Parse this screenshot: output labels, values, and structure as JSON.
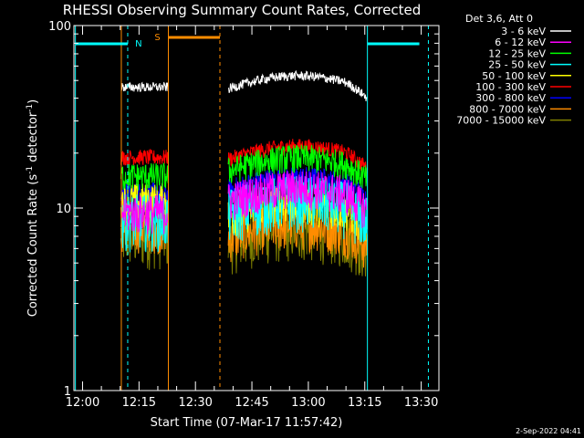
{
  "chart_data": {
    "type": "line",
    "title": "RHESSI Observing Summary Count Rates, Corrected",
    "xlabel": "Start Time (07-Mar-17 11:57:42)",
    "ylabel": "Corrected Count Rate (s",
    "ylabel_sup": "-1",
    "ylabel_tail": " detector",
    "ylabel_close": ")",
    "yscale": "log",
    "ylim": [
      1,
      100
    ],
    "y_ticks": [
      {
        "value": 1,
        "label": "1"
      },
      {
        "value": 10,
        "label": "10"
      },
      {
        "value": 100,
        "label": "100"
      }
    ],
    "xlim_minutes_after_start": [
      0,
      97
    ],
    "x_ticks": [
      {
        "minute": 2.3,
        "label": "12:00"
      },
      {
        "minute": 17.3,
        "label": "12:15"
      },
      {
        "minute": 32.3,
        "label": "12:30"
      },
      {
        "minute": 47.3,
        "label": "12:45"
      },
      {
        "minute": 62.3,
        "label": "13:00"
      },
      {
        "minute": 77.3,
        "label": "13:15"
      },
      {
        "minute": 92.3,
        "label": "13:30"
      }
    ],
    "legend_header": "Det 3,6, Att 0",
    "legend_position": "top-right outside",
    "segments": [
      [
        12.5,
        25.0
      ],
      [
        41.0,
        78.0
      ]
    ],
    "series": [
      {
        "name": "3 - 6 keV",
        "color": "#ffffff",
        "levels": [
          46,
          45
        ]
      },
      {
        "name": "6 - 12 keV",
        "color": "#ff00ff",
        "levels": [
          9.5,
          11
        ]
      },
      {
        "name": "12 - 25 keV",
        "color": "#00ff00",
        "levels": [
          15,
          16
        ]
      },
      {
        "name": "25 - 50 keV",
        "color": "#00ffff",
        "levels": [
          8.8,
          9.5
        ]
      },
      {
        "name": "50 - 100 keV",
        "color": "#ffff00",
        "levels": [
          11,
          9
        ]
      },
      {
        "name": "100 - 300 keV",
        "color": "#ff0000",
        "levels": [
          19,
          18.5
        ]
      },
      {
        "name": "300 - 800 keV",
        "color": "#0000ff",
        "levels": [
          12,
          12.5
        ]
      },
      {
        "name": "800 - 7000 keV",
        "color": "#ff8c00",
        "levels": [
          8,
          7
        ]
      },
      {
        "name": "7000 - 15000 keV",
        "color": "#808000",
        "levels": [
          7,
          6.5
        ]
      }
    ],
    "flags": [
      {
        "label": "N",
        "color": "#00ffff"
      },
      {
        "label": "S",
        "color": "#ff8c00"
      }
    ],
    "timestamp": "2-Sep-2022 04:41"
  }
}
